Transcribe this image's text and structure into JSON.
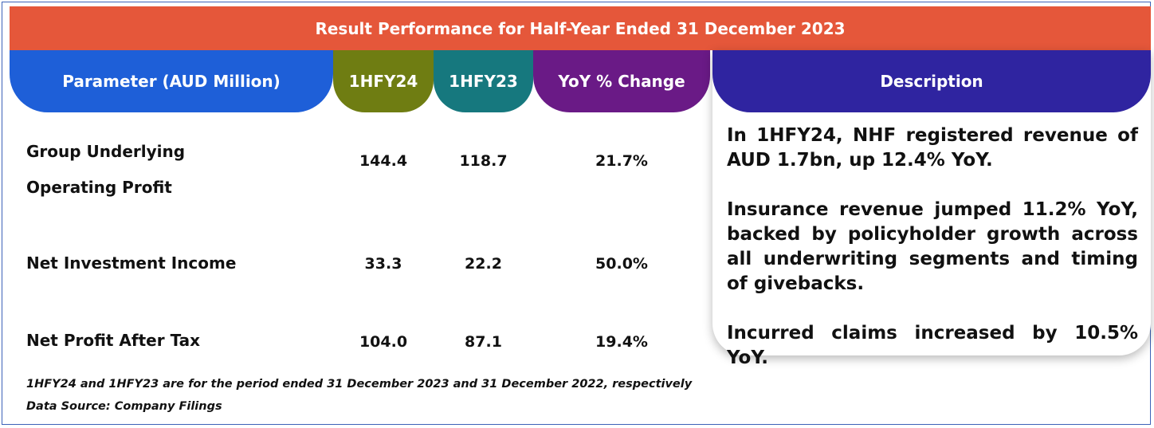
{
  "title": "Result Performance for Half-Year Ended 31 December 2023",
  "columns": {
    "parameter": "Parameter (AUD Million)",
    "h1fy24": "1HFY24",
    "h1fy23": "1HFY23",
    "yoy": "YoY % Change",
    "description": "Description"
  },
  "rows": [
    {
      "label_line1": "Group Underlying",
      "label_line2": "Operating Profit",
      "h1fy24": "144.4",
      "h1fy23": "118.7",
      "yoy": "21.7%"
    },
    {
      "label": "Net Investment Income",
      "h1fy24": "33.3",
      "h1fy23": "22.2",
      "yoy": "50.0%"
    },
    {
      "label": "Net Profit After Tax",
      "h1fy24": "104.0",
      "h1fy23": "87.1",
      "yoy": "19.4%"
    }
  ],
  "description": [
    "In 1HFY24, NHF registered revenue of AUD 1.7bn, up 12.4% YoY.",
    "Insurance revenue jumped 11.2% YoY, backed by policyholder growth across all underwriting segments and timing of givebacks.",
    "Incurred claims increased by 10.5% YoY."
  ],
  "footnote": "1HFY24 and 1HFY23 are for the period ended 31 December 2023 and 31 December 2022, respectively",
  "source": "Data Source: Company Filings",
  "colors": {
    "title_bg": "#e5573a",
    "param_bg": "#1e5fd8",
    "h1fy24_bg": "#6f7d12",
    "h1fy23_bg": "#16787e",
    "yoy_bg": "#6a1a86",
    "desc_bg": "#2f24a0"
  }
}
